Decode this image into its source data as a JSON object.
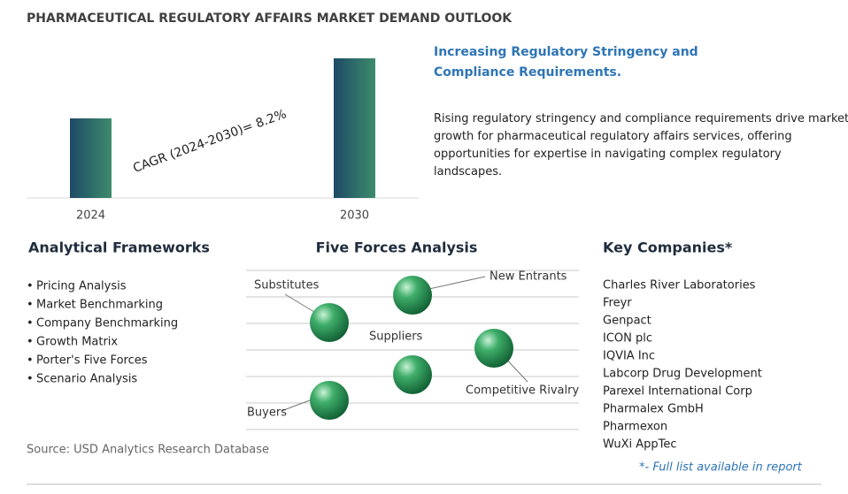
{
  "title": "PHARMACEUTICAL REGULATORY AFFAIRS MARKET DEMAND OUTLOOK",
  "chart_data": {
    "type": "bar",
    "categories": [
      "2024",
      "2030"
    ],
    "values": [
      57,
      100
    ],
    "annotation": "CAGR (2024-2030)=  8.2%"
  },
  "highlight": {
    "heading": "Increasing Regulatory Stringency and Compliance Requirements.",
    "body": "Rising regulatory stringency and compliance requirements drive market growth for pharmaceutical regulatory affairs services, offering opportunities for expertise in navigating complex regulatory landscapes."
  },
  "frameworks": {
    "heading": "Analytical Frameworks",
    "items": [
      "Pricing Analysis",
      "Market Benchmarking",
      "Company Benchmarking",
      "Growth Matrix",
      "Porter's Five Forces",
      "Scenario Analysis"
    ]
  },
  "five_forces": {
    "heading": "Five Forces Analysis",
    "labels": [
      "Substitutes",
      "New Entrants",
      "Suppliers",
      "Competitive Rivalry",
      "Buyers"
    ]
  },
  "companies": {
    "heading": "Key Companies*",
    "items": [
      "Charles River Laboratories",
      "Freyr",
      "Genpact",
      "ICON plc",
      "IQVIA Inc",
      "Labcorp Drug Development",
      "Parexel International Corp",
      "Pharmalex GmbH",
      "Pharmexon",
      "WuXi AppTec"
    ],
    "note": "*- Full list available in report"
  },
  "source": "Source: USD Analytics Research Database"
}
